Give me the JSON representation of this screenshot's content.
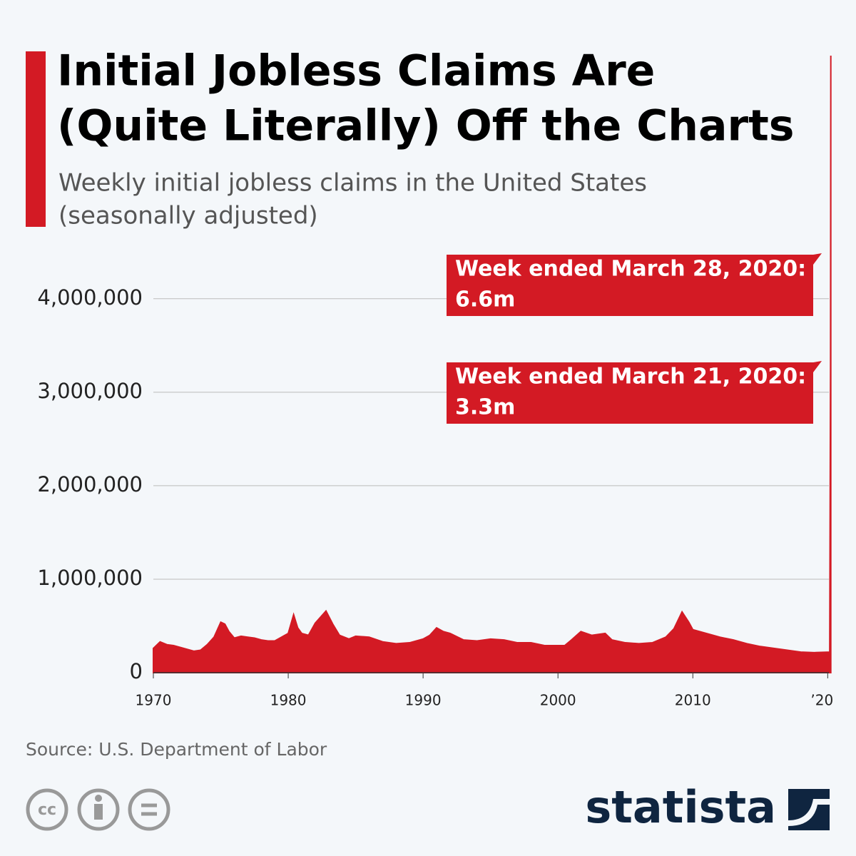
{
  "chart_data": {
    "type": "area",
    "title": [
      "Initial Jobless Claims Are",
      "(Quite Literally) Off the Charts"
    ],
    "subtitle": [
      "Weekly initial jobless claims in the United States",
      "(seasonally adjusted)"
    ],
    "x": [
      1970.0,
      1970.5,
      1971.0,
      1971.5,
      1972.0,
      1972.5,
      1973.0,
      1973.5,
      1974.0,
      1974.5,
      1975.0,
      1975.3,
      1975.6,
      1976.0,
      1976.5,
      1977.0,
      1977.5,
      1978.0,
      1978.5,
      1979.0,
      1979.5,
      1980.0,
      1980.4,
      1980.7,
      1981.0,
      1981.5,
      1982.0,
      1982.8,
      1983.3,
      1983.8,
      1984.5,
      1985.0,
      1986.0,
      1987.0,
      1988.0,
      1989.0,
      1990.0,
      1990.5,
      1991.0,
      1991.5,
      1992.0,
      1993.0,
      1994.0,
      1995.0,
      1996.0,
      1997.0,
      1998.0,
      1999.0,
      2000.5,
      2001.0,
      2001.7,
      2002.5,
      2003.5,
      2004.0,
      2005.0,
      2006.0,
      2007.0,
      2008.0,
      2008.6,
      2009.2,
      2009.7,
      2010.0,
      2011.0,
      2012.0,
      2013.0,
      2014.0,
      2015.0,
      2016.0,
      2017.0,
      2018.0,
      2019.0,
      2020.15,
      2020.21,
      2020.23
    ],
    "series": [
      {
        "name": "Initial jobless claims",
        "color": "#d31a24",
        "values": [
          260000,
          330000,
          300000,
          290000,
          270000,
          250000,
          230000,
          240000,
          300000,
          380000,
          540000,
          520000,
          440000,
          370000,
          390000,
          380000,
          370000,
          350000,
          340000,
          340000,
          380000,
          420000,
          620000,
          480000,
          420000,
          400000,
          530000,
          660000,
          520000,
          400000,
          360000,
          390000,
          380000,
          330000,
          310000,
          320000,
          360000,
          400000,
          480000,
          440000,
          420000,
          350000,
          340000,
          360000,
          350000,
          320000,
          320000,
          290000,
          290000,
          350000,
          440000,
          400000,
          420000,
          350000,
          320000,
          310000,
          320000,
          380000,
          470000,
          650000,
          540000,
          460000,
          420000,
          380000,
          350000,
          310000,
          280000,
          260000,
          240000,
          220000,
          215000,
          220000,
          3300000,
          6600000
        ]
      }
    ],
    "xlim": [
      1970,
      2020.3
    ],
    "xticks": [
      1970,
      1980,
      1990,
      2000,
      2010,
      {
        "value": 2020,
        "label": "’20"
      }
    ],
    "ylim": [
      0,
      6600000
    ],
    "yticks": [
      0,
      {
        "value": 1000000,
        "label": "1,000,000"
      },
      {
        "value": 2000000,
        "label": "2,000,000"
      },
      {
        "value": 3000000,
        "label": "3,000,000"
      },
      {
        "value": 4000000,
        "label": "4,000,000"
      }
    ],
    "grid": true,
    "annotations": [
      {
        "text": "Week ended March 28, 2020:",
        "label": "6.6m"
      },
      {
        "text": "Week ended March 21, 2020:",
        "label": "3.3m"
      }
    ],
    "source": "Source: U.S. Department of Labor",
    "brand": "statista"
  }
}
